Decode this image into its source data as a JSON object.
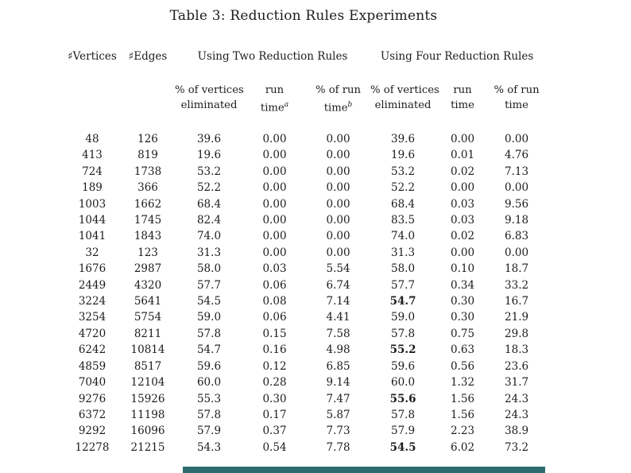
{
  "title": "Table 3: Reduction Rules Experiments",
  "table": {
    "col1_header": "♯Vertices",
    "col2_header": "♯Edges",
    "group_two": "Using Two Reduction Rules",
    "group_four": "Using Four Reduction Rules",
    "column_keys": [
      "vertices",
      "edges",
      "two-pct-vertices-eliminated",
      "two-run-time",
      "two-pct-run-time",
      "four-pct-vertices-eliminated",
      "four-run-time",
      "four-pct-run-time"
    ],
    "sub_headers": [
      {
        "key": "two-pct-vertices-eliminated",
        "line1": "% of vertices",
        "line2": "eliminated",
        "sup": ""
      },
      {
        "key": "two-run-time",
        "line1": "run",
        "line2": "time",
        "sup": "a"
      },
      {
        "key": "two-pct-run-time",
        "line1": "% of run",
        "line2": "time",
        "sup": "b"
      },
      {
        "key": "four-pct-vertices-eliminated",
        "line1": "% of vertices",
        "line2": "eliminated",
        "sup": ""
      },
      {
        "key": "four-run-time",
        "line1": "run",
        "line2": "time",
        "sup": ""
      },
      {
        "key": "four-pct-run-time",
        "line1": "% of run",
        "line2": "time",
        "sup": ""
      }
    ],
    "rows": [
      {
        "cells": [
          "48",
          "126",
          "39.6",
          "0.00",
          "0.00",
          "39.6",
          "0.00",
          "0.00"
        ],
        "four_bold": false
      },
      {
        "cells": [
          "413",
          "819",
          "19.6",
          "0.00",
          "0.00",
          "19.6",
          "0.01",
          "4.76"
        ],
        "four_bold": false
      },
      {
        "cells": [
          "724",
          "1738",
          "53.2",
          "0.00",
          "0.00",
          "53.2",
          "0.02",
          "7.13"
        ],
        "four_bold": false
      },
      {
        "cells": [
          "189",
          "366",
          "52.2",
          "0.00",
          "0.00",
          "52.2",
          "0.00",
          "0.00"
        ],
        "four_bold": false
      },
      {
        "cells": [
          "1003",
          "1662",
          "68.4",
          "0.00",
          "0.00",
          "68.4",
          "0.03",
          "9.56"
        ],
        "four_bold": false
      },
      {
        "cells": [
          "1044",
          "1745",
          "82.4",
          "0.00",
          "0.00",
          "83.5",
          "0.03",
          "9.18"
        ],
        "four_bold": false
      },
      {
        "cells": [
          "1041",
          "1843",
          "74.0",
          "0.00",
          "0.00",
          "74.0",
          "0.02",
          "6.83"
        ],
        "four_bold": false
      },
      {
        "cells": [
          "32",
          "123",
          "31.3",
          "0.00",
          "0.00",
          "31.3",
          "0.00",
          "0.00"
        ],
        "four_bold": false
      },
      {
        "cells": [
          "1676",
          "2987",
          "58.0",
          "0.03",
          "5.54",
          "58.0",
          "0.10",
          "18.7"
        ],
        "four_bold": false
      },
      {
        "cells": [
          "2449",
          "4320",
          "57.7",
          "0.06",
          "6.74",
          "57.7",
          "0.34",
          "33.2"
        ],
        "four_bold": false
      },
      {
        "cells": [
          "3224",
          "5641",
          "54.5",
          "0.08",
          "7.14",
          "54.7",
          "0.30",
          "16.7"
        ],
        "four_bold": true
      },
      {
        "cells": [
          "3254",
          "5754",
          "59.0",
          "0.06",
          "4.41",
          "59.0",
          "0.30",
          "21.9"
        ],
        "four_bold": false
      },
      {
        "cells": [
          "4720",
          "8211",
          "57.8",
          "0.15",
          "7.58",
          "57.8",
          "0.75",
          "29.8"
        ],
        "four_bold": false
      },
      {
        "cells": [
          "6242",
          "10814",
          "54.7",
          "0.16",
          "4.98",
          "55.2",
          "0.63",
          "18.3"
        ],
        "four_bold": true
      },
      {
        "cells": [
          "4859",
          "8517",
          "59.6",
          "0.12",
          "6.85",
          "59.6",
          "0.56",
          "23.6"
        ],
        "four_bold": false
      },
      {
        "cells": [
          "7040",
          "12104",
          "60.0",
          "0.28",
          "9.14",
          "60.0",
          "1.32",
          "31.7"
        ],
        "four_bold": false
      },
      {
        "cells": [
          "9276",
          "15926",
          "55.3",
          "0.30",
          "7.47",
          "55.6",
          "1.56",
          "24.3"
        ],
        "four_bold": true
      },
      {
        "cells": [
          "6372",
          "11198",
          "57.8",
          "0.17",
          "5.87",
          "57.8",
          "1.56",
          "24.3"
        ],
        "four_bold": false
      },
      {
        "cells": [
          "9292",
          "16096",
          "57.9",
          "0.37",
          "7.73",
          "57.9",
          "2.23",
          "38.9"
        ],
        "four_bold": false
      },
      {
        "cells": [
          "12278",
          "21215",
          "54.3",
          "0.54",
          "7.78",
          "54.5",
          "6.02",
          "73.2"
        ],
        "four_bold": true
      }
    ]
  },
  "bottom_bar": {
    "color": "#2e6b6e"
  }
}
